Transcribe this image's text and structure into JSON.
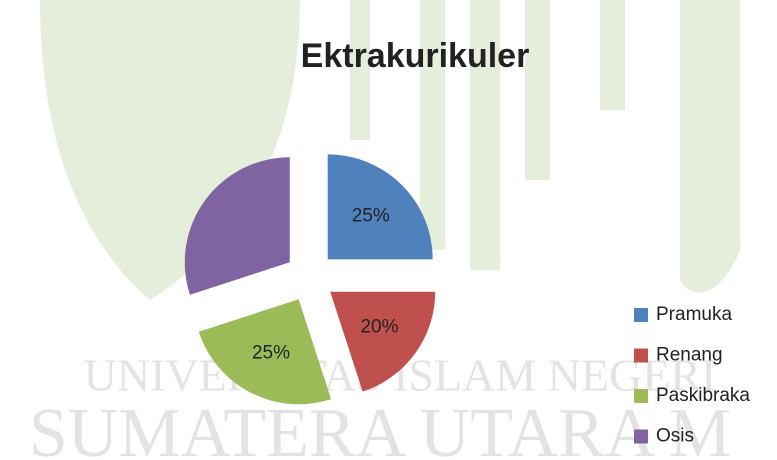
{
  "chart_data": {
    "type": "pie",
    "title": "Ektrakurikuler",
    "categories": [
      "Pramuka",
      "Renang",
      "Paskibraka",
      "Osis"
    ],
    "values": [
      25,
      20,
      25,
      30
    ],
    "value_labels": [
      "25%",
      "20%",
      "25%",
      null
    ],
    "colors": [
      "#4f81bd",
      "#c0504d",
      "#9bbb59",
      "#8064a2"
    ],
    "legend": "right",
    "watermark": [
      "UNIVERSITAS ISLAM NEGERI",
      "SUMATERA UTARA M"
    ]
  }
}
